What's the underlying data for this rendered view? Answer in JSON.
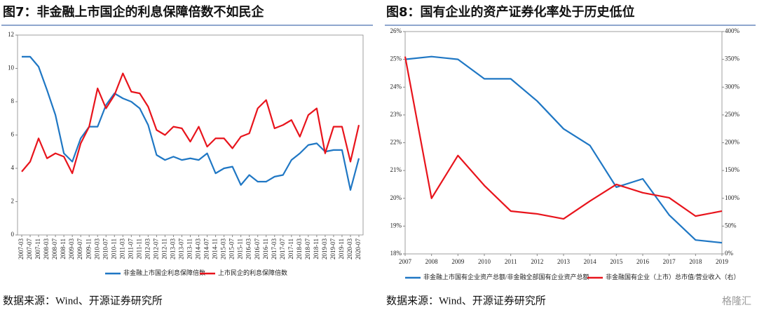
{
  "chart_data": [
    {
      "type": "line",
      "title": "图7：非金融上市国企的利息保障倍数不如民企",
      "source": "数据来源：Wind、开源证券研究所",
      "categories": [
        "2007-03",
        "2007-07",
        "2007-11",
        "2008-03",
        "2008-07",
        "2008-11",
        "2009-03",
        "2009-07",
        "2009-11",
        "2010-03",
        "2010-07",
        "2010-11",
        "2011-03",
        "2011-07",
        "2011-11",
        "2012-03",
        "2012-07",
        "2012-11",
        "2013-03",
        "2013-07",
        "2013-11",
        "2014-03",
        "2014-07",
        "2014-11",
        "2015-03",
        "2015-07",
        "2015-11",
        "2016-03",
        "2016-07",
        "2016-11",
        "2017-03",
        "2017-07",
        "2017-11",
        "2018-03",
        "2018-07",
        "2018-11",
        "2019-03",
        "2019-07",
        "2019-11",
        "2020-03",
        "2020-07"
      ],
      "series": [
        {
          "name": "非金融上市国企利息保障倍数",
          "color": "#1f77c4",
          "values": [
            10.7,
            10.7,
            10.1,
            8.7,
            7.2,
            4.9,
            4.4,
            5.8,
            6.5,
            6.5,
            7.8,
            8.5,
            8.2,
            8.0,
            7.6,
            6.6,
            4.8,
            4.5,
            4.7,
            4.5,
            4.6,
            4.5,
            4.9,
            3.7,
            4.0,
            4.1,
            3.0,
            3.6,
            3.2,
            3.2,
            3.5,
            3.6,
            4.5,
            4.9,
            5.4,
            5.5,
            5.0,
            5.1,
            5.1,
            2.7,
            4.6
          ]
        },
        {
          "name": "上市民企的利息保障倍数",
          "color": "#e8141c",
          "values": [
            3.8,
            4.4,
            5.8,
            4.6,
            4.9,
            4.7,
            3.7,
            5.5,
            6.5,
            8.8,
            7.6,
            8.4,
            9.7,
            8.6,
            8.5,
            7.7,
            6.3,
            6.0,
            6.5,
            6.4,
            5.6,
            6.5,
            5.3,
            5.8,
            5.8,
            5.2,
            5.9,
            6.1,
            7.6,
            8.1,
            6.4,
            6.6,
            6.9,
            5.9,
            7.2,
            7.6,
            4.9,
            6.5,
            6.5,
            4.4,
            6.6
          ]
        }
      ],
      "ylim": [
        0,
        12
      ],
      "yticks": [
        0,
        2,
        4,
        6,
        8,
        10,
        12
      ]
    },
    {
      "type": "line",
      "title": "图8：国有企业的资产证券化率处于历史低位",
      "source": "数据来源：Wind、开源证券研究所",
      "watermark": "格隆汇",
      "categories": [
        "2007",
        "2008",
        "2009",
        "2010",
        "2011",
        "2012",
        "2013",
        "2014",
        "2015",
        "2016",
        "2017",
        "2018",
        "2019"
      ],
      "series": [
        {
          "name": "非金融上市国有企业资产总额/非金融全部国有企业资产总额",
          "color": "#1f77c4",
          "values": [
            25.0,
            25.1,
            25.0,
            24.3,
            24.3,
            23.5,
            22.5,
            21.9,
            20.4,
            20.7,
            19.4,
            18.5,
            18.4
          ]
        },
        {
          "name": "非金融国有企业（上市）总市值/营业收入（右）",
          "color": "#e8141c",
          "axis": "y2",
          "values": [
            355,
            100,
            177,
            123,
            77,
            72,
            63,
            95,
            125,
            110,
            101,
            68,
            77
          ]
        }
      ],
      "ylim": [
        18,
        26
      ],
      "yticks": [
        {
          "value": 18,
          "label": "18%"
        },
        {
          "value": 19,
          "label": "19%"
        },
        {
          "value": 20,
          "label": "20%"
        },
        {
          "value": 21,
          "label": "21%"
        },
        {
          "value": 22,
          "label": "22%"
        },
        {
          "value": 23,
          "label": "23%"
        },
        {
          "value": 24,
          "label": "24%"
        },
        {
          "value": 25,
          "label": "25%"
        },
        {
          "value": 26,
          "label": "26%"
        }
      ],
      "y2lim": [
        0,
        400
      ],
      "y2ticks": [
        {
          "value": 0,
          "label": "0%"
        },
        {
          "value": 50,
          "label": "50%"
        },
        {
          "value": 100,
          "label": "100%"
        },
        {
          "value": 150,
          "label": "150%"
        },
        {
          "value": 200,
          "label": "200%"
        },
        {
          "value": 250,
          "label": "250%"
        },
        {
          "value": 300,
          "label": "300%"
        },
        {
          "value": 350,
          "label": "350%"
        },
        {
          "value": 400,
          "label": "400%"
        }
      ]
    }
  ]
}
